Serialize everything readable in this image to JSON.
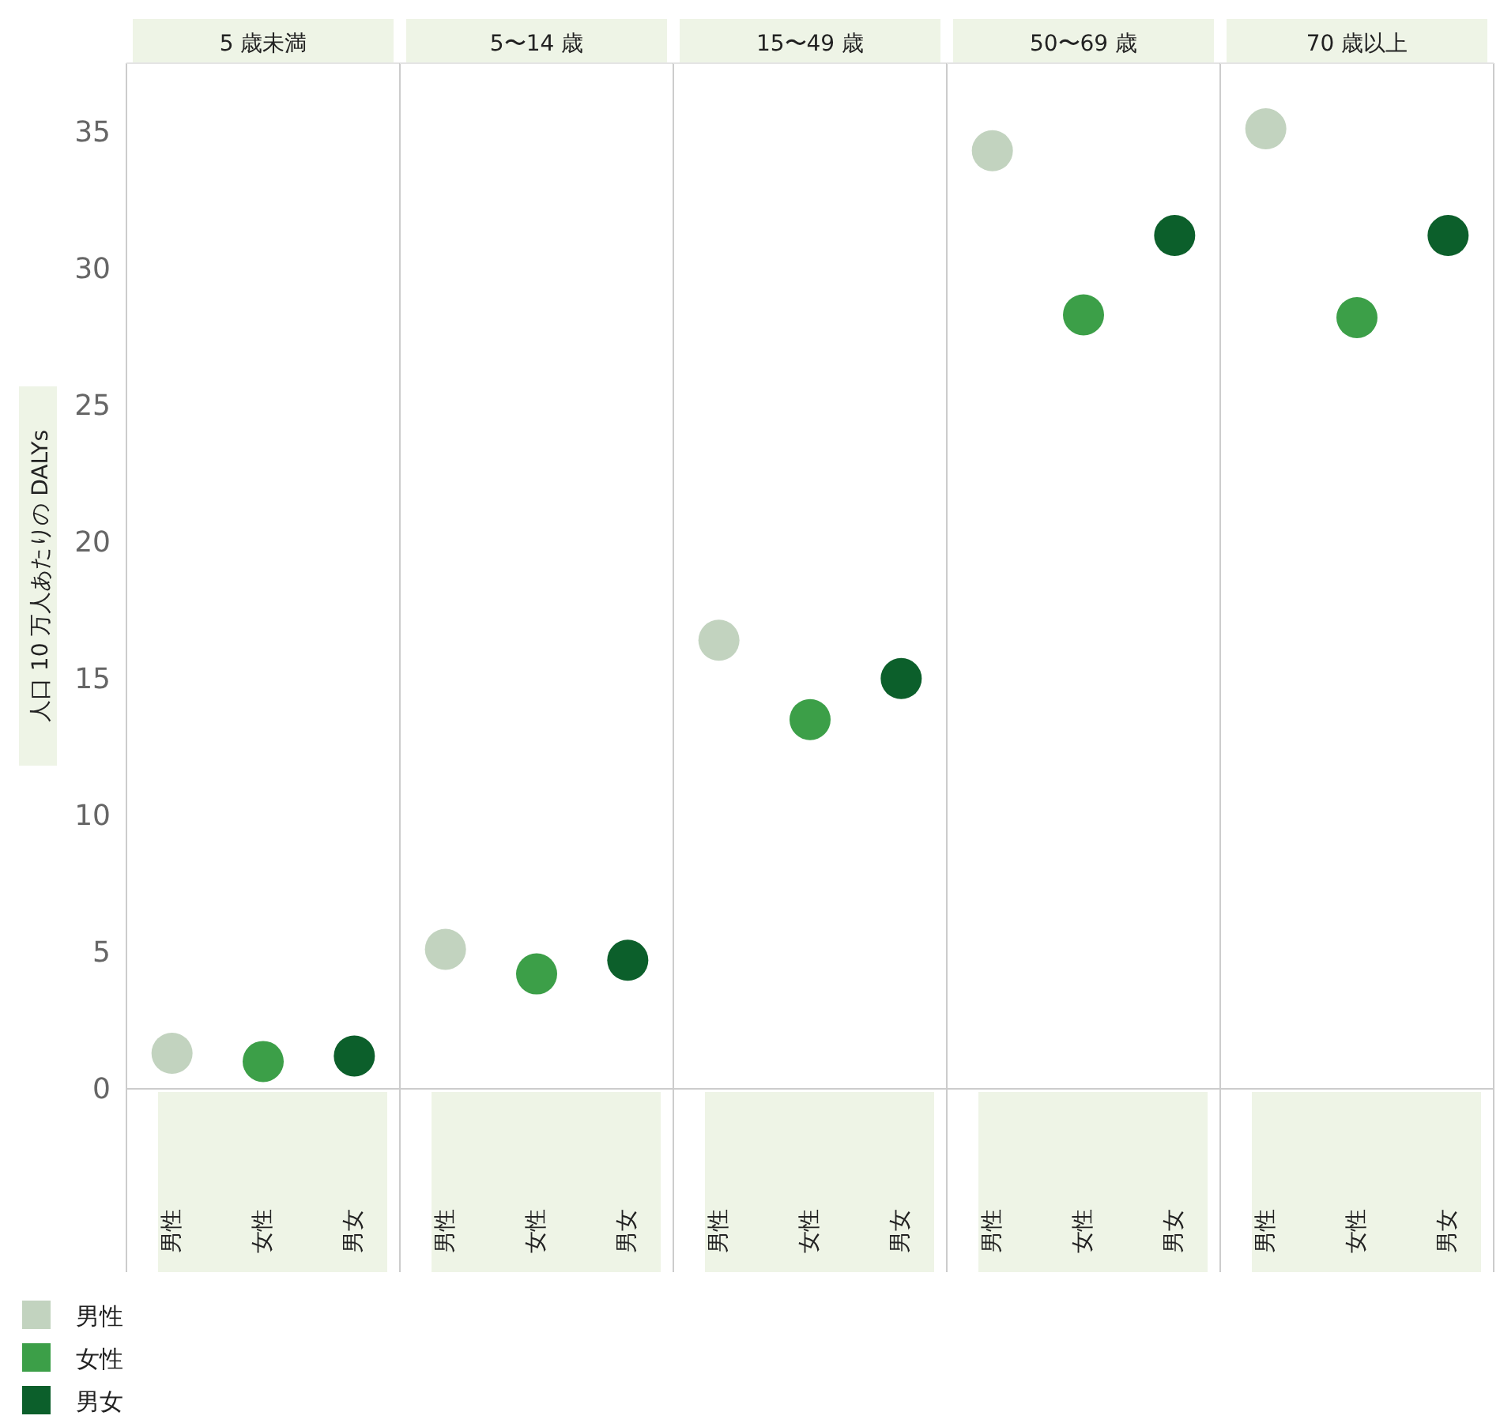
{
  "chart_data": [
    {
      "type": "scatter",
      "title": "5 歳未満",
      "ylabel": "人口 10 万人あたりの DALYs",
      "categories": [
        "男性",
        "女性",
        "男女"
      ],
      "ylim": [
        0,
        37.5
      ],
      "yticks": [
        0,
        5,
        10,
        15,
        20,
        25,
        30,
        35
      ],
      "grid": false,
      "marker": "circle",
      "legend": "bottom left",
      "series": [
        {
          "name": "男性",
          "color": "#c2d3bf",
          "values": [
            1.3,
            null,
            null
          ]
        },
        {
          "name": "女性",
          "color": "#3c9f48",
          "values": [
            null,
            1.0,
            null
          ]
        },
        {
          "name": "男女",
          "color": "#0c5f2b",
          "values": [
            null,
            null,
            1.2
          ]
        }
      ]
    },
    {
      "type": "scatter",
      "title": "5〜14 歳",
      "categories": [
        "男性",
        "女性",
        "男女"
      ],
      "ylim": [
        0,
        37.5
      ],
      "tick_labels": "x",
      "marker": "circle",
      "series": [
        {
          "color": "#c2d3bf",
          "values": [
            5.1,
            null,
            null
          ]
        },
        {
          "color": "#3c9f48",
          "values": [
            null,
            4.2,
            null
          ]
        },
        {
          "color": "#0c5f2b",
          "values": [
            null,
            null,
            4.7
          ]
        }
      ]
    },
    {
      "type": "scatter",
      "title": "15〜49 歳",
      "categories": [
        "男性",
        "女性",
        "男女"
      ],
      "ylim": [
        0,
        37.5
      ],
      "tick_labels": "x",
      "marker": "circle",
      "series": [
        {
          "color": "#c2d3bf",
          "values": [
            16.4,
            null,
            null
          ]
        },
        {
          "color": "#3c9f48",
          "values": [
            null,
            13.5,
            null
          ]
        },
        {
          "color": "#0c5f2b",
          "values": [
            null,
            null,
            15.0
          ]
        }
      ]
    },
    {
      "type": "scatter",
      "title": "50〜69 歳",
      "categories": [
        "男性",
        "女性",
        "男女"
      ],
      "ylim": [
        0,
        37.5
      ],
      "tick_labels": "x",
      "marker": "circle",
      "series": [
        {
          "color": "#c2d3bf",
          "values": [
            34.3,
            null,
            null
          ]
        },
        {
          "color": "#3c9f48",
          "values": [
            null,
            28.3,
            null
          ]
        },
        {
          "color": "#0c5f2b",
          "values": [
            null,
            null,
            31.2
          ]
        }
      ]
    },
    {
      "type": "scatter",
      "title": "70 歳以上",
      "categories": [
        "男性",
        "女性",
        "男女"
      ],
      "ylim": [
        0,
        37.5
      ],
      "tick_labels": "x",
      "marker": "circle",
      "series": [
        {
          "color": "#c2d3bf",
          "values": [
            35.1,
            null,
            null
          ]
        },
        {
          "color": "#3c9f48",
          "values": [
            null,
            28.2,
            null
          ]
        },
        {
          "color": "#0c5f2b",
          "values": [
            null,
            null,
            31.2
          ]
        }
      ]
    }
  ]
}
